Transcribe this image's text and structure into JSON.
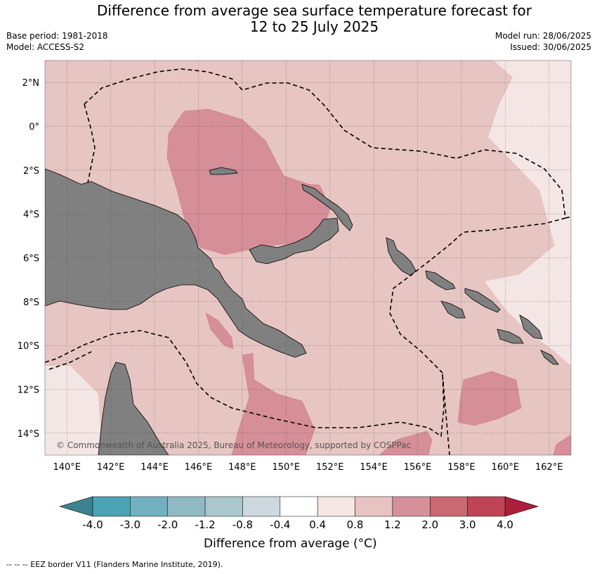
{
  "header": {
    "title_line1": "Difference from average sea surface temperature forecast for",
    "title_line2": "12 to 25 July 2025",
    "base_period": "Base period: 1981-2018",
    "model": "Model: ACCESS-S2",
    "model_run": "Model run: 28/06/2025",
    "issued": "Issued: 30/06/2025"
  },
  "map": {
    "lon_labels": [
      "140°E",
      "142°E",
      "144°E",
      "146°E",
      "148°E",
      "150°E",
      "152°E",
      "154°E",
      "156°E",
      "158°E",
      "160°E",
      "162°E"
    ],
    "lat_labels": [
      "2°N",
      "0°",
      "2°S",
      "4°S",
      "6°S",
      "8°S",
      "10°S",
      "12°S",
      "14°S"
    ],
    "copyright": "© Commonwealth of Australia 2025, Bureau of Meteorology, supported by COSPPac",
    "colors": {
      "land": "#808080",
      "background_anomaly": "#e7c5c2",
      "low_anomaly": "#f4e6e4",
      "high_anomaly": "#d68e98"
    }
  },
  "colorbar": {
    "title": "Difference from average (°C)",
    "ticks": [
      "-4.0",
      "-3.0",
      "-2.0",
      "-1.2",
      "-0.8",
      "-0.4",
      "0.4",
      "0.8",
      "1.2",
      "2.0",
      "3.0",
      "4.0"
    ],
    "colors": [
      "#4ba3b5",
      "#72b0c0",
      "#8fb9c5",
      "#a9c7cc",
      "#cdd9de",
      "#ffffff",
      "#f5e5e3",
      "#e7c4c1",
      "#d6909a",
      "#ca6873",
      "#bf4455"
    ],
    "under_color": "#3c8390",
    "over_color": "#ae1e3a"
  },
  "footer": {
    "text": "--  --  -- EEZ border V11 (Flanders Marine Institute, 2019)."
  }
}
